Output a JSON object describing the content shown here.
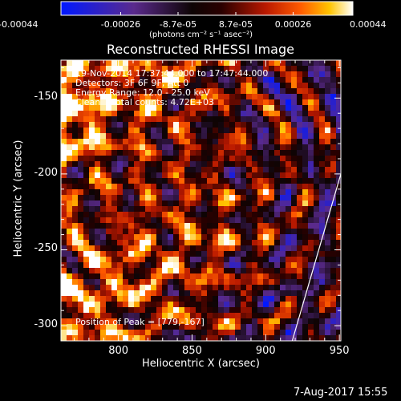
{
  "colorbar": {
    "tick_labels": [
      "-0.00044",
      "-0.00026",
      "-8.7e-05",
      "8.7e-05",
      "0.00026",
      "0.00044"
    ],
    "tick_values": [
      -0.00044,
      -0.00026,
      -8.7e-05,
      8.7e-05,
      0.00026,
      0.00044
    ],
    "units_label": "(photons cm⁻² s⁻¹ asec⁻²)",
    "range": [
      -0.00044,
      0.00044
    ],
    "stops": [
      {
        "f": 0.0,
        "color": "#0018ff"
      },
      {
        "f": 0.25,
        "color": "#5a2a8c"
      },
      {
        "f": 0.45,
        "color": "#0d0404"
      },
      {
        "f": 0.55,
        "color": "#2a0000"
      },
      {
        "f": 0.7,
        "color": "#b81800"
      },
      {
        "f": 0.82,
        "color": "#ff5a00"
      },
      {
        "f": 0.92,
        "color": "#ffc400"
      },
      {
        "f": 1.0,
        "color": "#ffffff"
      }
    ]
  },
  "chart_data": {
    "type": "heatmap",
    "title": "Reconstructed RHESSI Image",
    "xlabel": "Heliocentric X (arcsec)",
    "ylabel": "Heliocentric Y (arcsec)",
    "xlim": [
      761,
      951
    ],
    "ylim": [
      -310,
      -125
    ],
    "x_ticks": [
      800,
      850,
      900,
      950
    ],
    "x_tick_labels": [
      "800",
      "850",
      "900",
      "950"
    ],
    "y_ticks": [
      -150,
      -200,
      -250,
      -300
    ],
    "y_tick_labels": [
      "-150",
      "-200",
      "-250",
      "-300"
    ],
    "info_lines": [
      "19-Nov-2014 17:37:44.000 to 17:47:44.000",
      "Detectors: 3F 6F 9F, Att 0",
      "Energy Range: 12.0 - 25.0 keV",
      "Clean    Total counts: 4.72E+03"
    ],
    "peak_label": "Position of Peak = [779,-167]",
    "peak_position": [
      779,
      -167
    ],
    "limb_line": [
      [
        918,
        -310
      ],
      [
        951,
        -200
      ]
    ],
    "grid": false
  },
  "footer": {
    "timestamp": "7-Aug-2017 15:55"
  }
}
